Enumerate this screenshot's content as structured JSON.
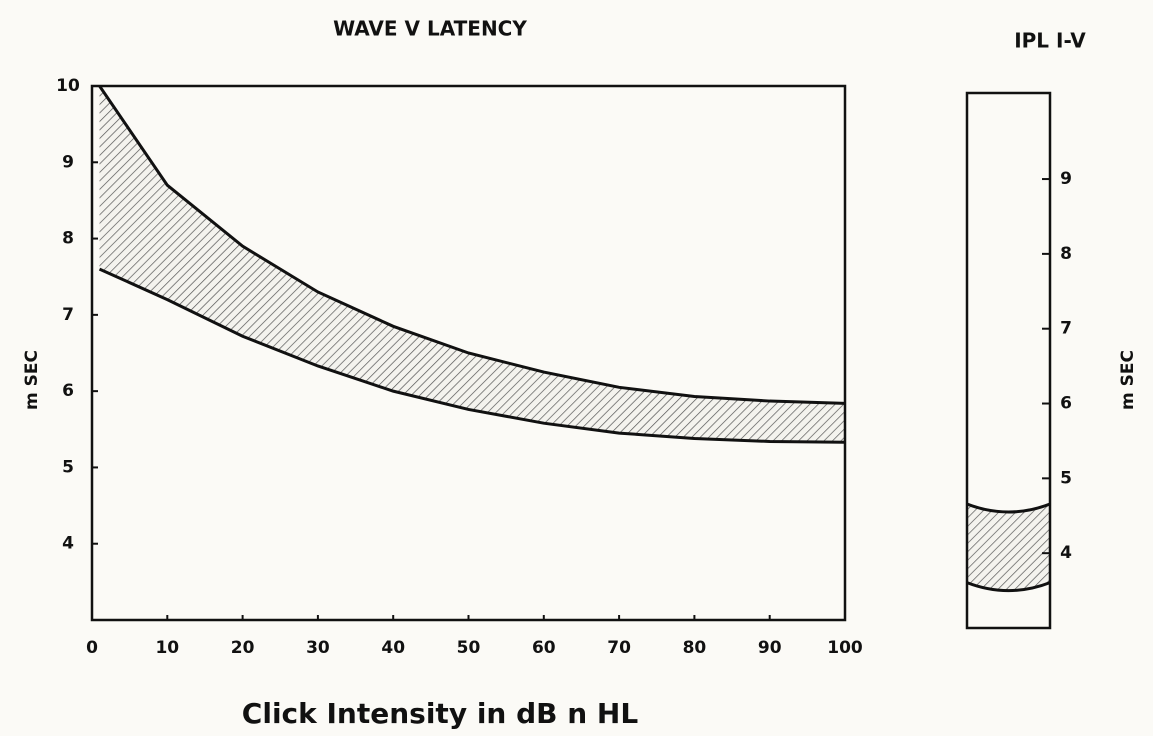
{
  "chart_data": [
    {
      "type": "band",
      "title": "WAVE V LATENCY",
      "y_label": "m SEC",
      "x_label": "Click Intensity in dB n HL",
      "x": [
        1,
        10,
        20,
        30,
        40,
        50,
        60,
        70,
        80,
        90,
        100
      ],
      "upper": [
        10,
        8.7,
        7.9,
        7.3,
        6.85,
        6.5,
        6.25,
        6.05,
        5.93,
        5.87,
        5.84
      ],
      "lower": [
        7.6,
        7.2,
        6.72,
        6.33,
        6.0,
        5.76,
        5.58,
        5.45,
        5.38,
        5.34,
        5.33
      ],
      "color": "#111111",
      "xlim": [
        0,
        100
      ],
      "xticks": [
        0,
        10,
        20,
        30,
        40,
        50,
        60,
        70,
        80,
        90,
        100
      ],
      "ylim": [
        3,
        10
      ],
      "yticks": [
        4,
        5,
        6,
        7,
        8,
        9,
        10
      ]
    },
    {
      "type": "range",
      "title": "IPL I-V",
      "y_label": "m SEC",
      "upper": 4.55,
      "lower": 3.5,
      "color": "#111111",
      "ylim": [
        3,
        10.15
      ],
      "yticks": [
        4,
        5,
        6,
        7,
        8,
        9
      ]
    }
  ]
}
